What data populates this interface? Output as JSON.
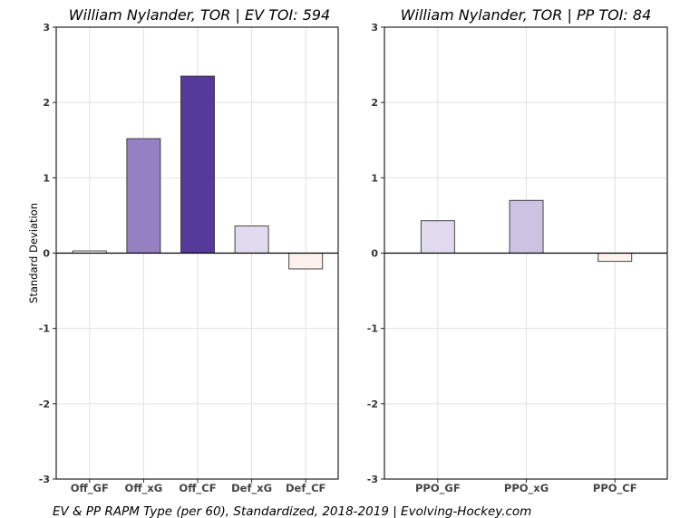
{
  "chart_data": [
    {
      "type": "bar",
      "title": "William Nylander, TOR  |  EV TOI: 594",
      "ylabel": "Standard Deviation",
      "xlabel": "",
      "ylim": [
        -3,
        3
      ],
      "yticks": [
        -3,
        -2,
        -1,
        0,
        1,
        2,
        3
      ],
      "grid": true,
      "categories": [
        "Off_GF",
        "Off_xG",
        "Off_CF",
        "Def_xG",
        "Def_CF"
      ],
      "values": [
        0.03,
        1.52,
        2.35,
        0.36,
        -0.21
      ],
      "colors": [
        "#fbfaff",
        "#9580c4",
        "#553a9c",
        "#e0dbef",
        "#fdf1ed"
      ]
    },
    {
      "type": "bar",
      "title": "William Nylander, TOR  |  PP TOI: 84",
      "ylabel": "",
      "xlabel": "",
      "ylim": [
        -3,
        3
      ],
      "yticks": [
        -3,
        -2,
        -1,
        0,
        1,
        2,
        3
      ],
      "grid": true,
      "categories": [
        "PPO_GF",
        "PPO_xG",
        "PPO_CF"
      ],
      "values": [
        0.43,
        0.7,
        -0.11
      ],
      "colors": [
        "#e1d9ee",
        "#cdc2e2",
        "#fdf3f0"
      ]
    }
  ],
  "footer": "EV & PP RAPM Type (per 60), Standardized, 2018-2019    |    Evolving-Hockey.com"
}
